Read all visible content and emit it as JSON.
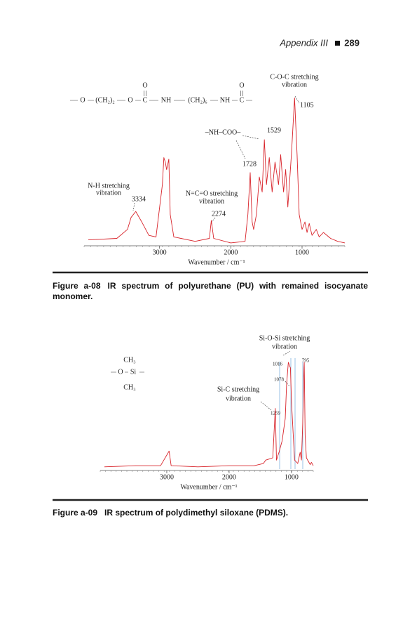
{
  "header": {
    "title": "Appendix III",
    "page": "289"
  },
  "chart_data": [
    {
      "type": "line",
      "xlabel": "Wavenumber / cm⁻¹",
      "color": "#d8232a",
      "xlim": [
        4000,
        400
      ],
      "ylim": [
        0,
        100
      ],
      "xticks": [
        3000,
        2000,
        1000
      ],
      "x": [
        4000,
        3600,
        3450,
        3400,
        3334,
        3250,
        3150,
        3050,
        2960,
        2940,
        2920,
        2900,
        2870,
        2850,
        2800,
        2500,
        2300,
        2274,
        2240,
        2000,
        1800,
        1760,
        1728,
        1700,
        1680,
        1640,
        1600,
        1560,
        1529,
        1500,
        1460,
        1420,
        1380,
        1330,
        1300,
        1260,
        1230,
        1200,
        1150,
        1105,
        1070,
        1040,
        1000,
        960,
        930,
        900,
        860,
        800,
        760,
        700,
        600,
        500,
        400
      ],
      "values": [
        3,
        4,
        10,
        18,
        22,
        15,
        6,
        5,
        40,
        58,
        55,
        50,
        57,
        20,
        5,
        2,
        4,
        16,
        4,
        1,
        2,
        20,
        48,
        15,
        10,
        20,
        45,
        35,
        70,
        40,
        58,
        35,
        55,
        40,
        60,
        35,
        50,
        25,
        60,
        98,
        60,
        20,
        10,
        15,
        8,
        14,
        6,
        10,
        5,
        8,
        4,
        2,
        1
      ],
      "structure": [
        "O",
        "(CH₂)₂",
        "O",
        "C",
        "NH",
        "(CH₂)₆",
        "NH",
        "C"
      ],
      "carbonyl": [
        "O",
        "O"
      ],
      "annotations": [
        [
          "C-O-C stretching",
          "vibration"
        ],
        "1105",
        "–NH–COO–",
        "1529",
        "1728",
        [
          "N-H stretching",
          "vibration"
        ],
        "3334",
        [
          "N=C=O stretching",
          "vibration"
        ],
        "2274"
      ]
    },
    {
      "type": "line",
      "xlabel": "Wavenumber / cm⁻¹",
      "color": "#d8232a",
      "xlim": [
        4000,
        650
      ],
      "ylim": [
        0,
        100
      ],
      "xticks": [
        3000,
        2000,
        1000
      ],
      "x": [
        4000,
        3500,
        3100,
        2962,
        2930,
        2500,
        2000,
        1600,
        1450,
        1412,
        1300,
        1259,
        1240,
        1200,
        1150,
        1100,
        1078,
        1050,
        1016,
        1000,
        950,
        900,
        860,
        840,
        820,
        800,
        795,
        780,
        760,
        700,
        680,
        650
      ],
      "values": [
        2,
        3,
        3,
        16,
        3,
        2,
        3,
        3,
        5,
        8,
        10,
        54,
        8,
        15,
        25,
        45,
        75,
        95,
        90,
        60,
        8,
        5,
        15,
        8,
        40,
        90,
        95,
        30,
        10,
        4,
        6,
        3
      ],
      "structure": [
        "CH₃",
        "O",
        "Si",
        "CH₃"
      ],
      "annotations": [
        [
          "Si-O-Si stretching",
          "vibration"
        ],
        "1016",
        "795",
        "1078",
        [
          "Si-C stretching",
          "vibration"
        ],
        "1259"
      ]
    }
  ],
  "captions": [
    {
      "label": "Figure a-08",
      "text": "IR spectrum of polyurethane (PU) with remained isocyanate monomer."
    },
    {
      "label": "Figure a-09",
      "text": "IR spectrum of polydimethyl siloxane (PDMS)."
    }
  ]
}
